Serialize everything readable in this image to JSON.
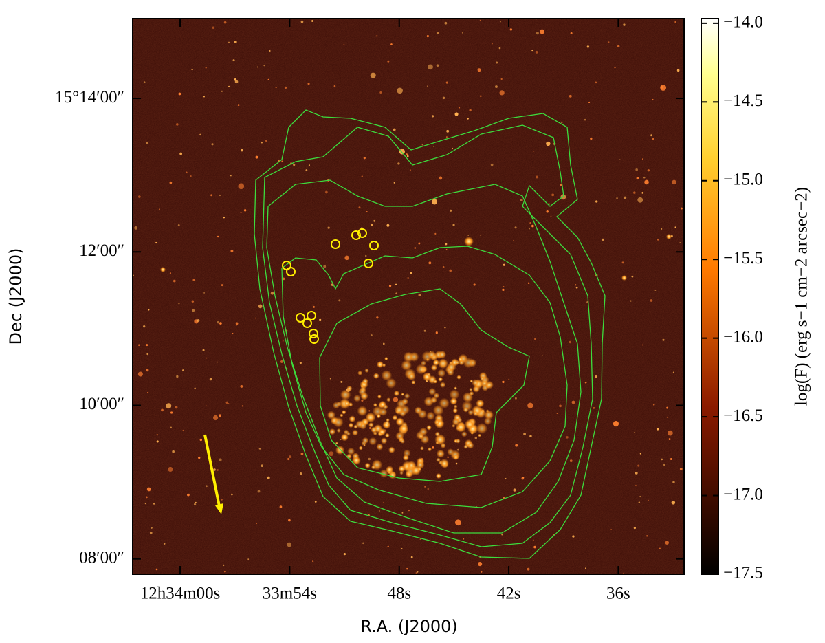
{
  "chart_data": {
    "type": "image",
    "xlabel": "R.A. (J2000)",
    "ylabel": "Dec (J2000)",
    "xlim": [
      62.6,
      32.4
    ],
    "xticks": [
      {
        "value": 60,
        "label": "12h34m00s"
      },
      {
        "value": 54,
        "label": "33m54s"
      },
      {
        "value": 48,
        "label": "48s"
      },
      {
        "value": 42,
        "label": "42s"
      },
      {
        "value": 36,
        "label": "36s"
      }
    ],
    "ylim": [
      7.8,
      15.04
    ],
    "yticks": [
      {
        "value": 14,
        "label": "15°14′00″"
      },
      {
        "value": 12,
        "label": "12′00″"
      },
      {
        "value": 10,
        "label": "10′00″"
      },
      {
        "value": 8,
        "label": "08′00″"
      }
    ],
    "colorbar": {
      "label": "log(F) (erg s−1 cm−2 arcsec−2)",
      "lim": [
        -17.5,
        -13.97
      ],
      "ticks": [
        {
          "value": -14,
          "label": "−14.0"
        },
        {
          "value": -14.5,
          "label": "−14.5"
        },
        {
          "value": -15,
          "label": "−15.0"
        },
        {
          "value": -15.5,
          "label": "−15.5"
        },
        {
          "value": -16,
          "label": "−16.0"
        },
        {
          "value": -16.5,
          "label": "−16.5"
        },
        {
          "value": -17,
          "label": "−17.0"
        },
        {
          "value": -17.5,
          "label": "−17.5"
        }
      ]
    }
  }
}
